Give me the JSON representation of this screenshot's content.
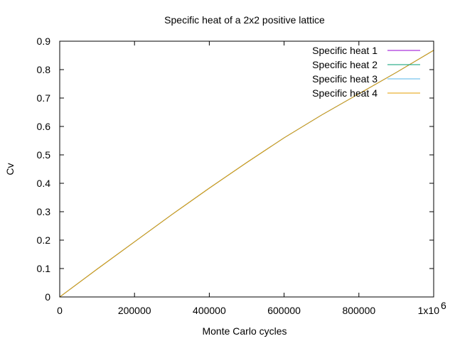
{
  "chart_data": {
    "type": "line",
    "title": "Specific heat of a 2x2 positive lattice",
    "xlabel": "Monte Carlo cycles",
    "ylabel": "Cv",
    "xlim": [
      0,
      1000000
    ],
    "ylim": [
      0,
      0.9
    ],
    "xticks": [
      0,
      200000,
      400000,
      600000,
      800000,
      1000000
    ],
    "xtick_labels": [
      "0",
      "200000",
      "400000",
      "600000",
      "800000",
      "1x10"
    ],
    "x_multiplier_exponent": "6",
    "yticks": [
      0,
      0.1,
      0.2,
      0.3,
      0.4,
      0.5,
      0.6,
      0.7,
      0.8,
      0.9
    ],
    "ytick_labels": [
      "0",
      "0.1",
      "0.2",
      "0.3",
      "0.4",
      "0.5",
      "0.6",
      "0.7",
      "0.8",
      "0.9"
    ],
    "grid": false,
    "legend_position": "top-right",
    "x": [
      0,
      100000,
      200000,
      300000,
      400000,
      500000,
      600000,
      700000,
      800000,
      900000,
      1000000
    ],
    "series": [
      {
        "name": "Specific heat 1",
        "color": "#9400d3",
        "values": [
          0,
          0.098,
          0.194,
          0.29,
          0.383,
          0.473,
          0.56,
          0.64,
          0.715,
          0.79,
          0.868
        ]
      },
      {
        "name": "Specific heat 2",
        "color": "#009e73",
        "values": [
          0,
          0.098,
          0.194,
          0.29,
          0.383,
          0.473,
          0.56,
          0.64,
          0.715,
          0.79,
          0.868
        ]
      },
      {
        "name": "Specific heat 3",
        "color": "#56b4e9",
        "values": [
          0,
          0.098,
          0.194,
          0.29,
          0.383,
          0.473,
          0.56,
          0.64,
          0.715,
          0.79,
          0.868
        ]
      },
      {
        "name": "Specific heat 4",
        "color": "#e69f00",
        "values": [
          0,
          0.098,
          0.194,
          0.29,
          0.383,
          0.473,
          0.56,
          0.64,
          0.715,
          0.79,
          0.868
        ]
      }
    ]
  }
}
